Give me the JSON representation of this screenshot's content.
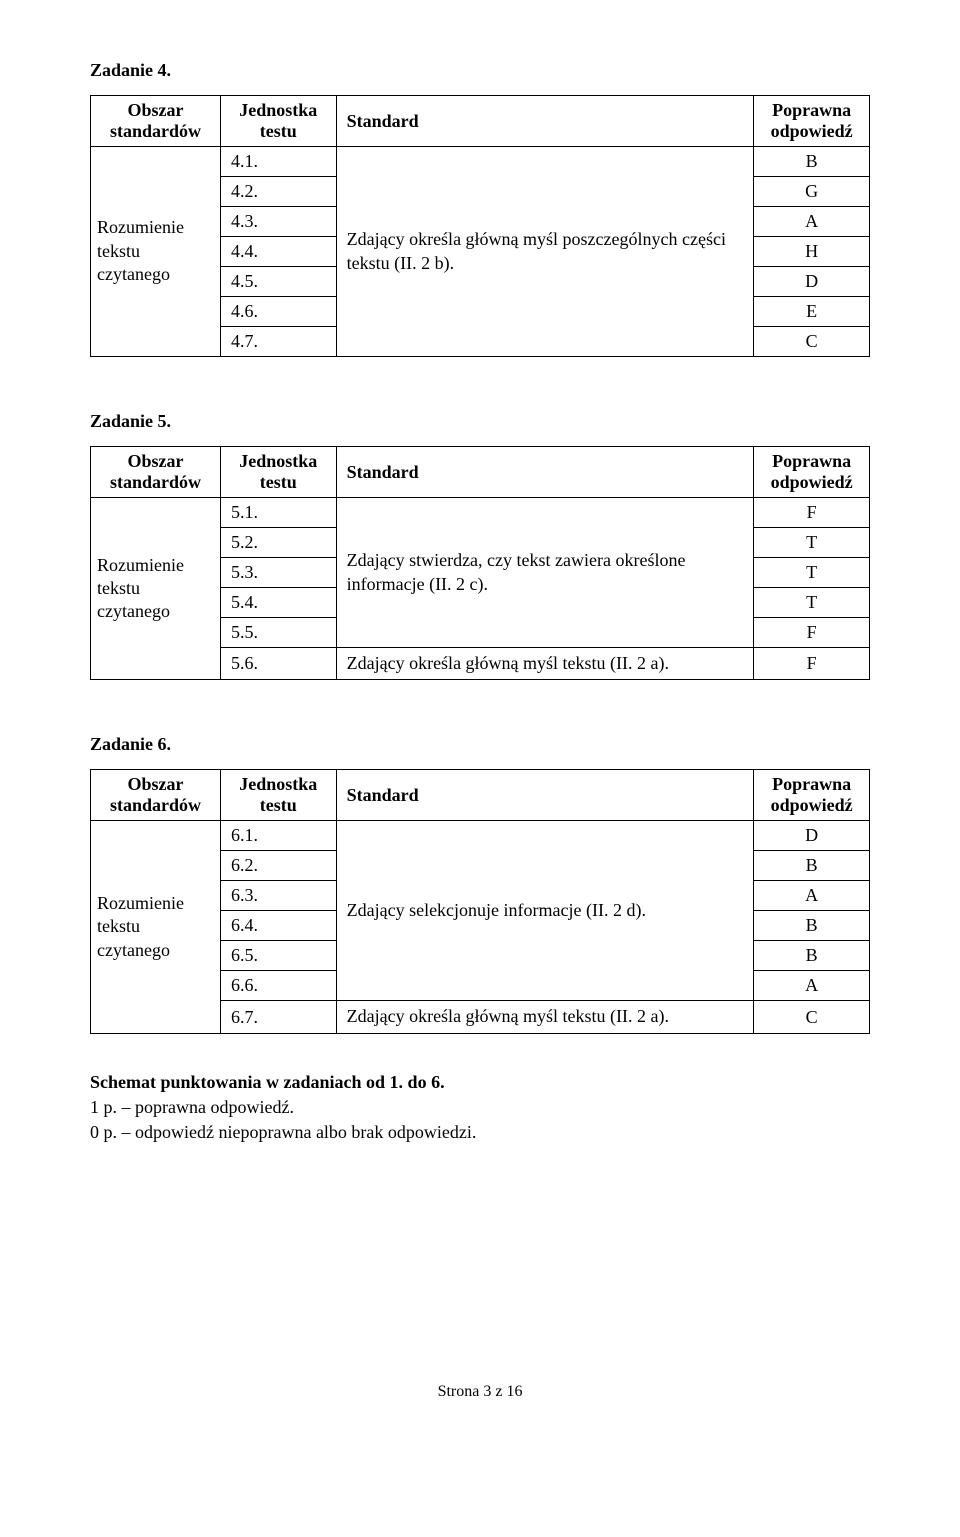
{
  "task4": {
    "title": "Zadanie 4.",
    "headers": {
      "area": "Obszar standardów",
      "unit": "Jednostka testu",
      "standard": "Standard",
      "answer": "Poprawna odpowiedź"
    },
    "area_text": "Rozumienie tekstu czytanego",
    "standard_text": "Zdający określa główną myśl poszczególnych części tekstu (II. 2 b).",
    "rows": [
      {
        "unit": "4.1.",
        "answer": "B"
      },
      {
        "unit": "4.2.",
        "answer": "G"
      },
      {
        "unit": "4.3.",
        "answer": "A"
      },
      {
        "unit": "4.4.",
        "answer": "H"
      },
      {
        "unit": "4.5.",
        "answer": "D"
      },
      {
        "unit": "4.6.",
        "answer": "E"
      },
      {
        "unit": "4.7.",
        "answer": "C"
      }
    ]
  },
  "task5": {
    "title": "Zadanie 5.",
    "headers": {
      "area": "Obszar standardów",
      "unit": "Jednostka testu",
      "standard": "Standard",
      "answer": "Poprawna odpowiedź"
    },
    "area_text": "Rozumienie tekstu czytanego",
    "standard1_text": "Zdający stwierdza, czy tekst zawiera określone informacje (II. 2 c).",
    "standard2_text": "Zdający określa główną myśl tekstu (II. 2 a).",
    "group1": [
      {
        "unit": "5.1.",
        "answer": "F"
      },
      {
        "unit": "5.2.",
        "answer": "T"
      },
      {
        "unit": "5.3.",
        "answer": "T"
      },
      {
        "unit": "5.4.",
        "answer": "T"
      },
      {
        "unit": "5.5.",
        "answer": "F"
      }
    ],
    "row6": {
      "unit": "5.6.",
      "answer": "F"
    }
  },
  "task6": {
    "title": "Zadanie 6.",
    "headers": {
      "area": "Obszar standardów",
      "unit": "Jednostka testu",
      "standard": "Standard",
      "answer": "Poprawna odpowiedź"
    },
    "area_text": "Rozumienie tekstu czytanego",
    "standard1_text": "Zdający selekcjonuje informacje (II. 2 d).",
    "standard2_text": "Zdający określa główną myśl tekstu (II. 2 a).",
    "group1": [
      {
        "unit": "6.1.",
        "answer": "D"
      },
      {
        "unit": "6.2.",
        "answer": "B"
      },
      {
        "unit": "6.3.",
        "answer": "A"
      },
      {
        "unit": "6.4.",
        "answer": "B"
      },
      {
        "unit": "6.5.",
        "answer": "B"
      },
      {
        "unit": "6.6.",
        "answer": "A"
      }
    ],
    "row7": {
      "unit": "6.7.",
      "answer": "C"
    }
  },
  "footer_section": {
    "line1": "Schemat punktowania w zadaniach od 1. do 6.",
    "line2": "1 p. – poprawna odpowiedź.",
    "line3": "0 p. – odpowiedź niepoprawna albo brak odpowiedzi."
  },
  "page_footer": "Strona 3 z 16"
}
